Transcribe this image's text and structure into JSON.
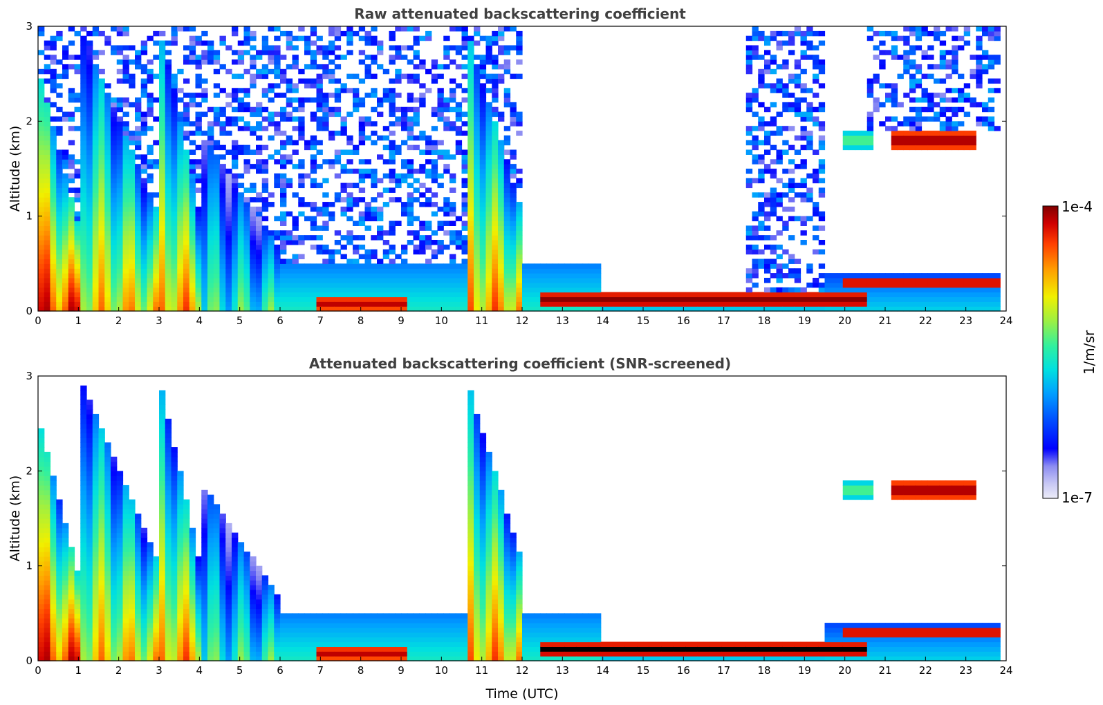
{
  "chart_data": [
    {
      "type": "heatmap",
      "title": "Raw attenuated backscattering coefficient",
      "ylabel": "Altitude (km)",
      "xlabel": "",
      "xlim": [
        0,
        24
      ],
      "ylim": [
        0,
        3
      ],
      "xticks": [
        "0",
        "1",
        "2",
        "3",
        "4",
        "5",
        "6",
        "7",
        "8",
        "9",
        "10",
        "11",
        "12",
        "13",
        "14",
        "15",
        "16",
        "17",
        "18",
        "19",
        "20",
        "21",
        "22",
        "23",
        "24"
      ],
      "yticks": [
        "0",
        "1",
        "2",
        "3"
      ],
      "color_scale": "log",
      "features": [
        {
          "kind": "plume",
          "t0": 0.0,
          "t1": 1.0,
          "z_top": 2.6,
          "strength": 0.85
        },
        {
          "kind": "plume",
          "t0": 1.0,
          "t1": 3.0,
          "z_top": 3.0,
          "strength": 0.7
        },
        {
          "kind": "plume",
          "t0": 3.0,
          "t1": 4.0,
          "z_top": 3.0,
          "strength": 0.75
        },
        {
          "kind": "plume",
          "t0": 4.0,
          "t1": 6.0,
          "z_top": 1.9,
          "strength": 0.5
        },
        {
          "kind": "plume",
          "t0": 10.6,
          "t1": 12.0,
          "z_top": 3.0,
          "strength": 0.75
        },
        {
          "kind": "boundary_layer",
          "t0": 6.0,
          "t1": 14.0,
          "z_top": 0.5,
          "strength": 0.35
        },
        {
          "kind": "boundary_layer",
          "t0": 14.0,
          "t1": 19.5,
          "z_top": 0.22,
          "strength": 0.3
        },
        {
          "kind": "boundary_layer",
          "t0": 19.5,
          "t1": 23.8,
          "z_top": 0.38,
          "strength": 0.3
        },
        {
          "kind": "aerosol_layer",
          "t0": 6.9,
          "t1": 9.1,
          "z": 0.08,
          "strength": 0.95
        },
        {
          "kind": "aerosol_layer",
          "t0": 12.5,
          "t1": 20.5,
          "z": 0.12,
          "strength": 1.0
        },
        {
          "kind": "aerosol_layer",
          "t0": 20.0,
          "t1": 23.8,
          "z": 0.3,
          "strength": 0.95
        },
        {
          "kind": "cloud",
          "t0": 21.2,
          "t1": 23.3,
          "z": 1.8,
          "strength": 1.0
        },
        {
          "kind": "cloud",
          "t0": 20.0,
          "t1": 20.7,
          "z": 1.8,
          "strength": 0.6
        }
      ]
    },
    {
      "type": "heatmap",
      "title": "Attenuated backscattering coefficient (SNR-screened)",
      "ylabel": "Altitude (km)",
      "xlabel": "Time (UTC)",
      "xlim": [
        0,
        24
      ],
      "ylim": [
        0,
        3
      ],
      "xticks": [
        "0",
        "1",
        "2",
        "3",
        "4",
        "5",
        "6",
        "7",
        "8",
        "9",
        "10",
        "11",
        "12",
        "13",
        "14",
        "15",
        "16",
        "17",
        "18",
        "19",
        "20",
        "21",
        "22",
        "23",
        "24"
      ],
      "yticks": [
        "0",
        "1",
        "2",
        "3"
      ],
      "color_scale": "log",
      "saturated_color": "#000000"
    }
  ],
  "colorbar": {
    "label": "1/m/sr",
    "max_label": "1e-4",
    "min_label": "1e-7",
    "range": [
      1e-07,
      0.0001
    ],
    "colormap": [
      "#ececf8",
      "#c8c8f4",
      "#8c8cf2",
      "#0000ff",
      "#0050ff",
      "#00a0ff",
      "#00e0e0",
      "#30f0a0",
      "#a0f040",
      "#f0f000",
      "#ffa000",
      "#ff4000",
      "#d00000",
      "#800000"
    ]
  }
}
